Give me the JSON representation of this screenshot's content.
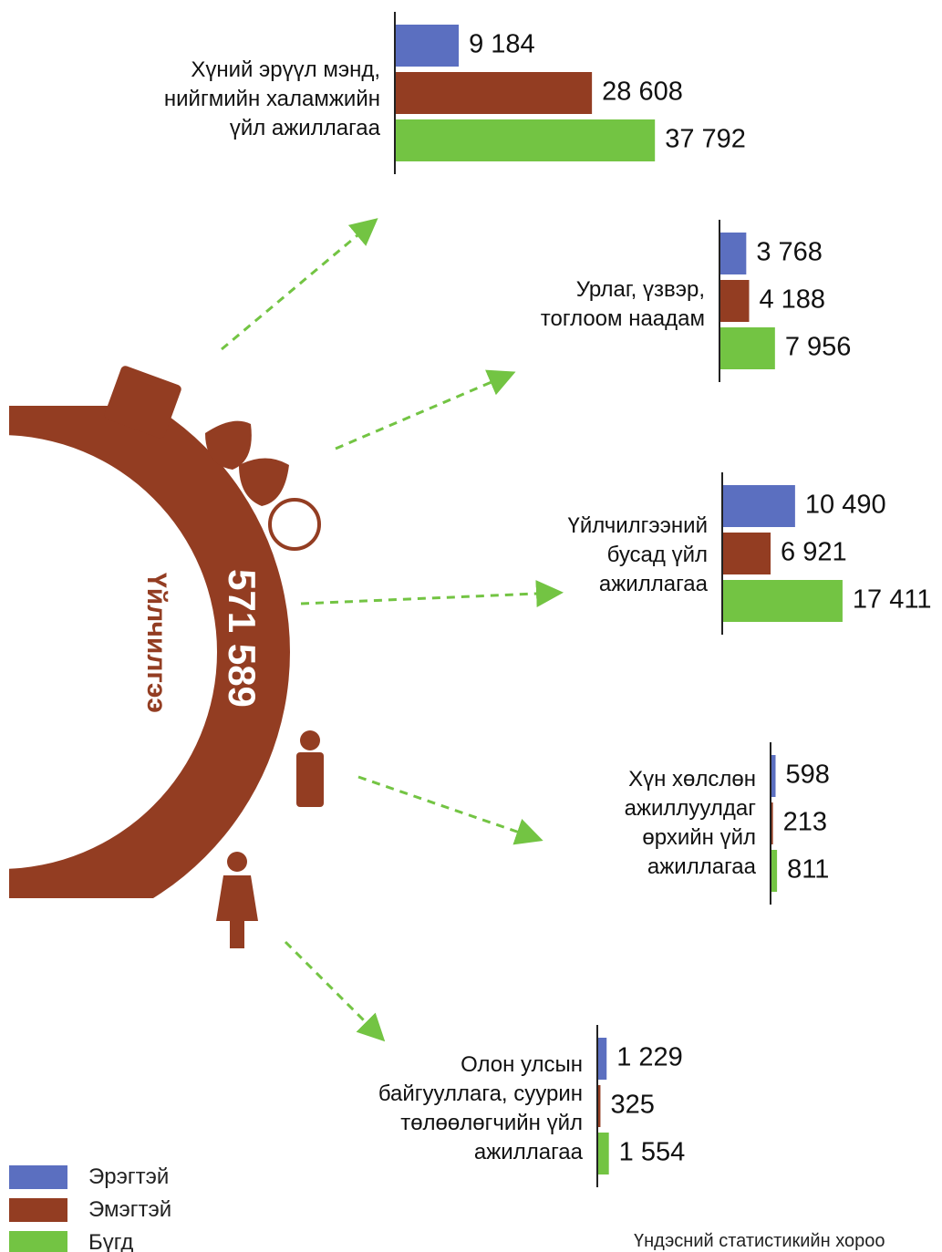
{
  "chart_data": {
    "type": "bar",
    "categories": [
      "Хүний эрүүл мэнд,\nнийгмийн халамжийн\nүйл ажиллагаа",
      "Урлаг, үзвэр,\nтоглоом наадам",
      "Үйлчилгээний\nбусад үйл\nажиллагаа",
      "Хүн хөлслөн\nажиллуулдаг\nөрхийн үйл\nажиллагаа",
      "Олон улсын\nбайгууллага, суурин\nтөлөөлөгчийн үйл\nажиллагаа"
    ],
    "series": [
      {
        "name": "Эрэгтэй",
        "color": "#5b6fc0",
        "values": [
          9184,
          3768,
          10490,
          598,
          1229
        ],
        "value_labels": [
          "9 184",
          "3 768",
          "10 490",
          "598",
          "1 229"
        ]
      },
      {
        "name": "Эмэгтэй",
        "color": "#933d22",
        "values": [
          28608,
          4188,
          6921,
          213,
          325
        ],
        "value_labels": [
          "28 608",
          "4 188",
          "6 921",
          "213",
          "325"
        ]
      },
      {
        "name": "Бүгд",
        "color": "#73c443",
        "values": [
          37792,
          7956,
          17411,
          811,
          1554
        ],
        "value_labels": [
          "37 792",
          "7 956",
          "17 411",
          "811",
          "1 554"
        ]
      }
    ],
    "summary": {
      "label": "Үйлчилгээ",
      "total": "571 589"
    },
    "source": "Үндэсний статистикийн хороо"
  }
}
